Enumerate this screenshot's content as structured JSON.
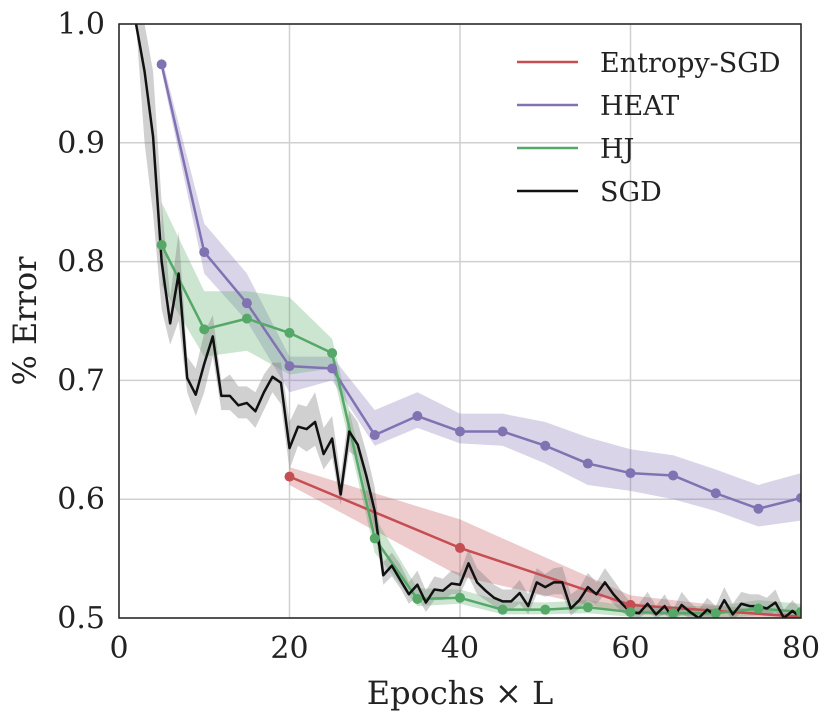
{
  "chart_data": {
    "type": "line",
    "title": "",
    "xlabel": "Epochs × L",
    "ylabel": "% Error",
    "xlim": [
      0,
      80
    ],
    "ylim": [
      0.5,
      1.0
    ],
    "xticks": [
      0,
      20,
      40,
      60,
      80
    ],
    "yticks": [
      0.5,
      0.6,
      0.7,
      0.8,
      0.9,
      1.0
    ],
    "xtick_labels": [
      "0",
      "20",
      "40",
      "60",
      "80"
    ],
    "ytick_labels": [
      "0.5",
      "0.6",
      "0.7",
      "0.8",
      "0.9",
      "1.0"
    ],
    "grid": true,
    "legend_position": "top-right",
    "series": [
      {
        "name": "Entropy-SGD",
        "color": "#c44e52",
        "markers": true,
        "x": [
          20,
          40,
          60,
          80
        ],
        "y": [
          0.619,
          0.559,
          0.511,
          0.501
        ],
        "lower": [
          0.612,
          0.535,
          0.503,
          0.499
        ],
        "upper": [
          0.627,
          0.583,
          0.519,
          0.503
        ]
      },
      {
        "name": "HEAT",
        "color": "#8172b2",
        "markers": true,
        "x": [
          5,
          10,
          15,
          20,
          25,
          30,
          35,
          40,
          45,
          50,
          55,
          60,
          65,
          70,
          75,
          80
        ],
        "y": [
          0.966,
          0.808,
          0.765,
          0.712,
          0.71,
          0.654,
          0.67,
          0.657,
          0.657,
          0.645,
          0.63,
          0.622,
          0.62,
          0.605,
          0.592,
          0.601
        ],
        "lower": [
          0.96,
          0.79,
          0.75,
          0.69,
          0.7,
          0.645,
          0.66,
          0.647,
          0.645,
          0.63,
          0.612,
          0.607,
          0.6,
          0.59,
          0.577,
          0.582
        ],
        "upper": [
          0.972,
          0.832,
          0.79,
          0.72,
          0.72,
          0.675,
          0.69,
          0.672,
          0.672,
          0.665,
          0.652,
          0.642,
          0.637,
          0.625,
          0.612,
          0.622
        ]
      },
      {
        "name": "HJ",
        "color": "#55a868",
        "markers": true,
        "x": [
          5,
          10,
          15,
          20,
          25,
          30,
          35,
          40,
          45,
          50,
          55,
          60,
          65,
          70,
          75,
          80
        ],
        "y": [
          0.814,
          0.743,
          0.752,
          0.74,
          0.723,
          0.567,
          0.516,
          0.517,
          0.507,
          0.507,
          0.509,
          0.505,
          0.504,
          0.504,
          0.508,
          0.505
        ],
        "lower": [
          0.78,
          0.72,
          0.725,
          0.705,
          0.71,
          0.555,
          0.51,
          0.512,
          0.503,
          0.503,
          0.504,
          0.501,
          0.5,
          0.5,
          0.502,
          0.5
        ],
        "upper": [
          0.85,
          0.775,
          0.775,
          0.77,
          0.735,
          0.585,
          0.525,
          0.524,
          0.514,
          0.513,
          0.515,
          0.51,
          0.51,
          0.51,
          0.515,
          0.512
        ]
      },
      {
        "name": "SGD",
        "color": "#111111",
        "markers": false,
        "x": [
          2,
          3,
          4,
          5,
          6,
          7,
          8,
          9,
          10,
          11,
          12,
          13,
          14,
          15,
          16,
          17,
          18,
          19,
          20,
          21,
          22,
          23,
          24,
          25,
          26,
          27,
          28,
          29,
          30,
          31,
          32,
          33,
          34,
          35,
          36,
          37,
          38,
          39,
          40,
          41,
          42,
          43,
          44,
          45,
          46,
          47,
          48,
          49,
          50,
          51,
          52,
          53,
          54,
          55,
          56,
          57,
          58,
          59,
          60,
          61,
          62,
          63,
          64,
          65,
          66,
          67,
          68,
          69,
          70,
          71,
          72,
          73,
          74,
          75,
          76,
          77,
          78,
          79,
          80
        ],
        "y": [
          1.0,
          0.96,
          0.905,
          0.8,
          0.748,
          0.79,
          0.702,
          0.688,
          0.714,
          0.737,
          0.687,
          0.687,
          0.679,
          0.681,
          0.674,
          0.69,
          0.703,
          0.698,
          0.643,
          0.661,
          0.659,
          0.665,
          0.638,
          0.651,
          0.604,
          0.657,
          0.646,
          0.62,
          0.59,
          0.536,
          0.544,
          0.532,
          0.52,
          0.528,
          0.513,
          0.524,
          0.523,
          0.529,
          0.528,
          0.546,
          0.53,
          0.523,
          0.517,
          0.514,
          0.514,
          0.521,
          0.51,
          0.53,
          0.526,
          0.53,
          0.53,
          0.508,
          0.515,
          0.526,
          0.52,
          0.53,
          0.52,
          0.512,
          0.505,
          0.504,
          0.512,
          0.503,
          0.51,
          0.5,
          0.511,
          0.505,
          0.5,
          0.507,
          0.502,
          0.515,
          0.503,
          0.512,
          0.51,
          0.51,
          0.508,
          0.513,
          0.5,
          0.506,
          0.5
        ],
        "lower": [
          1.0,
          0.9,
          0.84,
          0.76,
          0.73,
          0.75,
          0.69,
          0.67,
          0.69,
          0.72,
          0.675,
          0.675,
          0.668,
          0.668,
          0.66,
          0.675,
          0.69,
          0.68,
          0.625,
          0.645,
          0.64,
          0.645,
          0.625,
          0.635,
          0.595,
          0.64,
          0.635,
          0.605,
          0.575,
          0.528,
          0.535,
          0.525,
          0.512,
          0.518,
          0.505,
          0.515,
          0.515,
          0.52,
          0.52,
          0.535,
          0.52,
          0.515,
          0.51,
          0.507,
          0.507,
          0.512,
          0.503,
          0.52,
          0.518,
          0.52,
          0.52,
          0.502,
          0.508,
          0.515,
          0.512,
          0.52,
          0.512,
          0.505,
          0.5,
          0.5,
          0.505,
          0.5,
          0.503,
          0.497,
          0.503,
          0.5,
          0.497,
          0.5,
          0.498,
          0.507,
          0.498,
          0.505,
          0.503,
          0.503,
          0.502,
          0.505,
          0.497,
          0.5,
          0.497
        ],
        "upper": [
          1.0,
          1.0,
          0.96,
          0.85,
          0.77,
          0.825,
          0.72,
          0.71,
          0.74,
          0.755,
          0.7,
          0.705,
          0.695,
          0.695,
          0.69,
          0.705,
          0.715,
          0.715,
          0.665,
          0.68,
          0.678,
          0.69,
          0.66,
          0.67,
          0.62,
          0.675,
          0.665,
          0.64,
          0.61,
          0.547,
          0.555,
          0.545,
          0.53,
          0.54,
          0.523,
          0.535,
          0.533,
          0.54,
          0.538,
          0.558,
          0.542,
          0.535,
          0.528,
          0.524,
          0.524,
          0.532,
          0.52,
          0.542,
          0.537,
          0.542,
          0.543,
          0.52,
          0.525,
          0.538,
          0.53,
          0.542,
          0.532,
          0.522,
          0.513,
          0.512,
          0.522,
          0.51,
          0.52,
          0.507,
          0.522,
          0.513,
          0.507,
          0.517,
          0.51,
          0.526,
          0.512,
          0.522,
          0.52,
          0.52,
          0.517,
          0.524,
          0.507,
          0.515,
          0.507
        ]
      }
    ]
  }
}
